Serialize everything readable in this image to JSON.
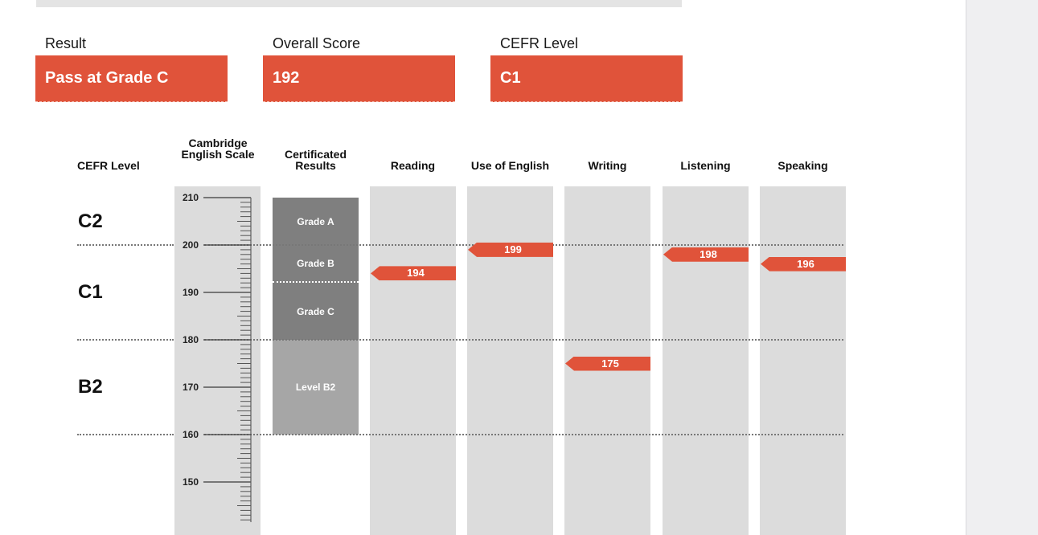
{
  "summary": {
    "result_label": "Result",
    "result_value": "Pass at Grade C",
    "overall_label": "Overall Score",
    "overall_value": "192",
    "cefr_label": "CEFR Level",
    "cefr_value": "C1"
  },
  "colors": {
    "accent": "#e0533a",
    "column_bg": "#dcdcdc",
    "grade_dark": "#7f7f7f",
    "grade_light": "#a6a6a6"
  },
  "chart_data": {
    "type": "bar",
    "headers": {
      "cefr": "CEFR Level",
      "scale": "Cambridge English Scale",
      "certificated": "Certificated Results"
    },
    "cefr_levels": [
      {
        "label": "C2",
        "range": [
          200,
          210
        ]
      },
      {
        "label": "C1",
        "range": [
          180,
          200
        ]
      },
      {
        "label": "B2",
        "range": [
          160,
          180
        ]
      }
    ],
    "boundaries": [
      200,
      180,
      160
    ],
    "scale_ticks": [
      "210",
      "200",
      "190",
      "180",
      "170",
      "160",
      "150"
    ],
    "grade_bands": [
      {
        "label": "Grade A",
        "range": [
          200,
          210
        ]
      },
      {
        "label": "Grade B",
        "range": [
          192,
          200
        ]
      },
      {
        "label": "Grade C",
        "range": [
          180,
          192
        ]
      },
      {
        "label": "Level B2",
        "range": [
          160,
          180
        ]
      }
    ],
    "categories": [
      "Reading",
      "Use of English",
      "Writing",
      "Listening",
      "Speaking"
    ],
    "values": [
      194,
      199,
      175,
      198,
      196
    ],
    "ylim": [
      142,
      212
    ]
  }
}
